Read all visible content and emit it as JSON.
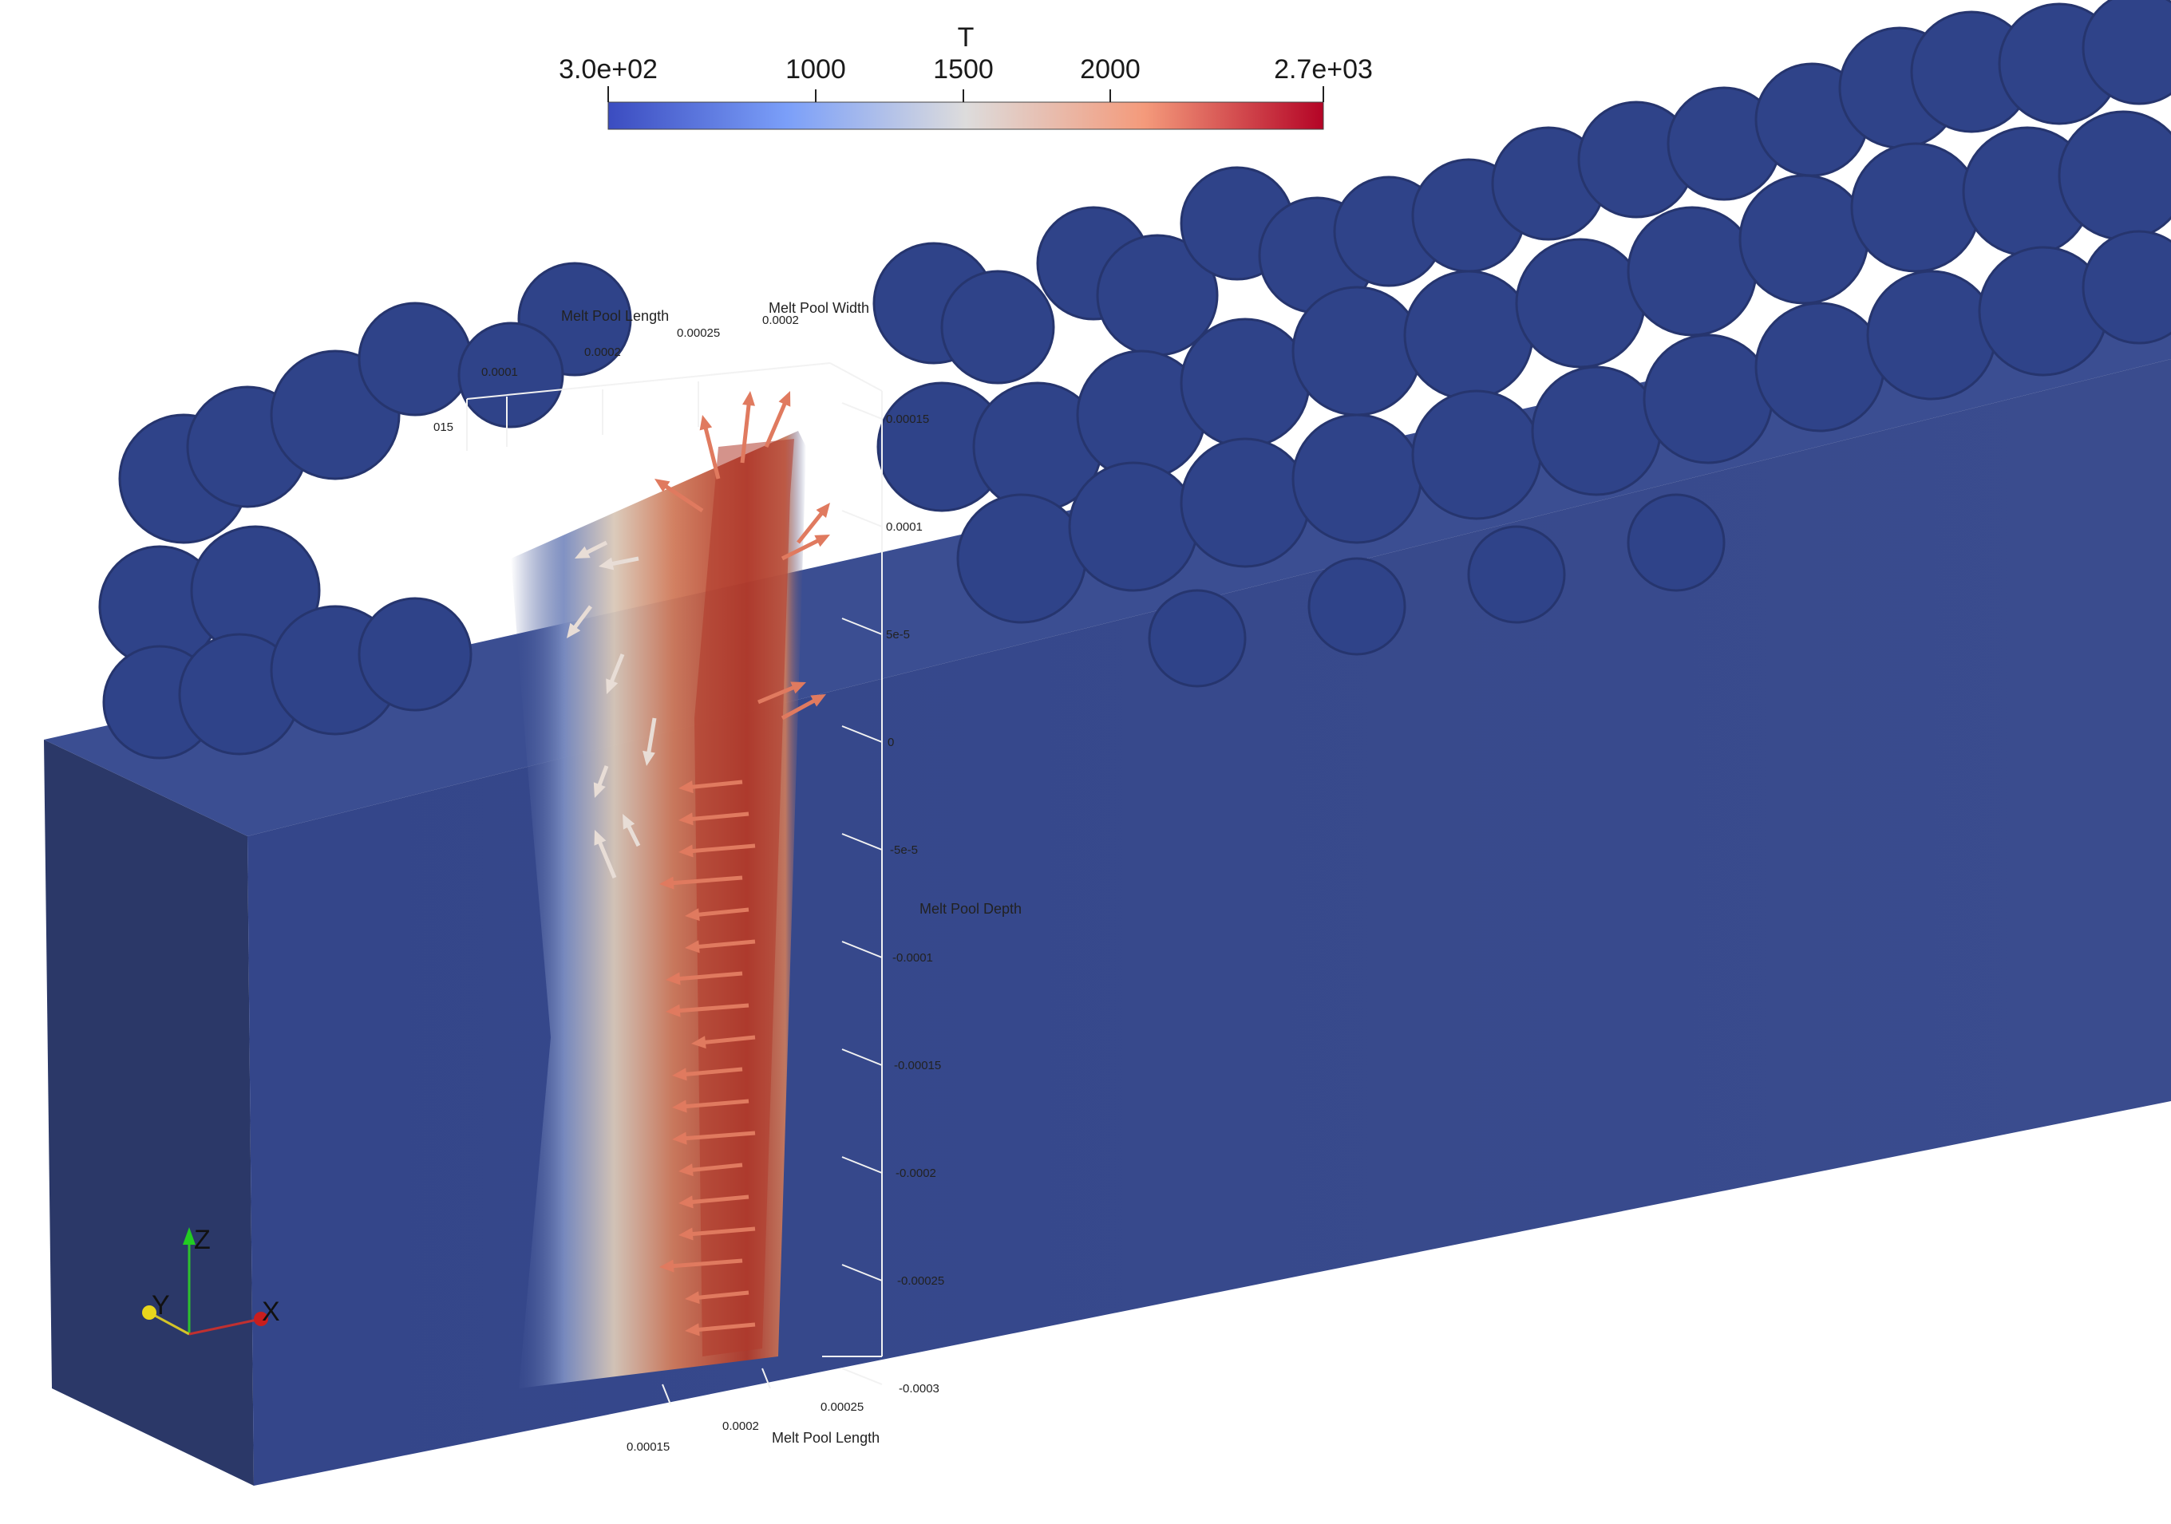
{
  "colorbar": {
    "title": "T",
    "ticks": [
      "3.0e+02",
      "1000",
      "1500",
      "2000",
      "2.7e+03"
    ],
    "range": [
      300,
      2700
    ],
    "colors": [
      "#3b4cc0",
      "#dddcdc",
      "#b40426"
    ]
  },
  "axes": {
    "depth_label": "Melt Pool Depth",
    "length_label": "Melt Pool Length",
    "width_label": "Melt Pool Width",
    "top_length_label": "Melt Pool Length",
    "depth_ticks": [
      "0.00015",
      "0.0001",
      "5e-5",
      "0",
      "-5e-5",
      "-0.0001",
      "-0.00015",
      "-0.0002",
      "-0.00025",
      "-0.0003"
    ],
    "length_ticks": [
      "0.00015",
      "0.0002",
      "0.00025"
    ],
    "top_length_ticks": [
      "0.0001",
      "0.0002",
      "0.00025"
    ],
    "width_ticks": [
      "0.0002",
      "015"
    ]
  },
  "orientation": {
    "z": "Z",
    "y": "Y",
    "x": "X"
  },
  "scene": {
    "substrate_color": "#3a4c8e",
    "substrate_front_color": "#2e3b6e",
    "powder_color": "#2f4389",
    "arrow_color": "#e07a5f"
  }
}
